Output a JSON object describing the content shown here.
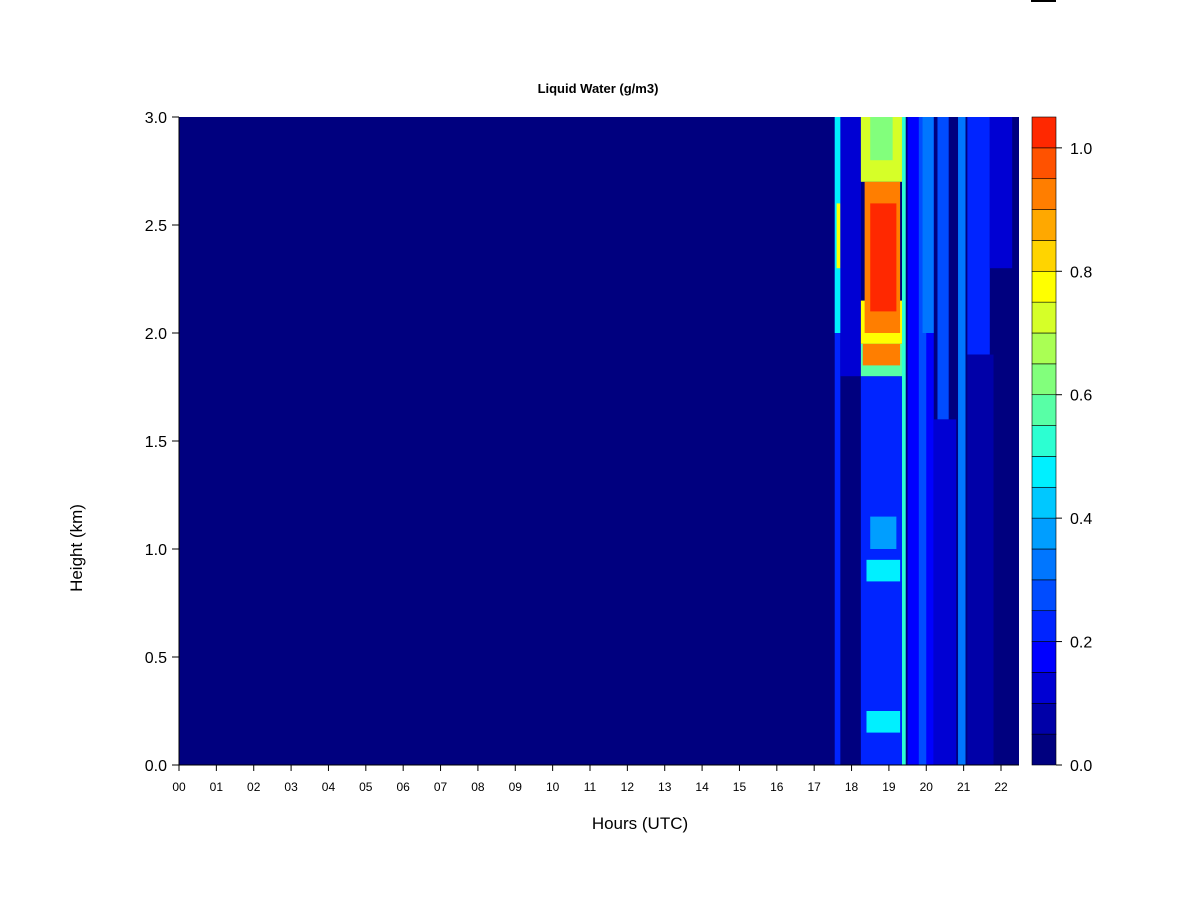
{
  "chart_data": {
    "type": "heatmap",
    "title": "Liquid Water (g/m3)",
    "xlabel": "Hours (UTC)",
    "ylabel": "Height (km)",
    "xlim": [
      0,
      22.5
    ],
    "ylim": [
      0,
      3.0
    ],
    "x_ticks": [
      "00",
      "01",
      "02",
      "03",
      "04",
      "05",
      "06",
      "07",
      "08",
      "09",
      "10",
      "11",
      "12",
      "13",
      "14",
      "15",
      "16",
      "17",
      "18",
      "19",
      "20",
      "21",
      "22"
    ],
    "y_ticks": [
      "0.0",
      "0.5",
      "1.0",
      "1.5",
      "2.0",
      "2.5",
      "3.0"
    ],
    "colorbar": {
      "levels": [
        0.0,
        0.05,
        0.1,
        0.15,
        0.2,
        0.25,
        0.3,
        0.35,
        0.4,
        0.45,
        0.5,
        0.55,
        0.6,
        0.65,
        0.7,
        0.75,
        0.8,
        0.85,
        0.9,
        0.95,
        1.0,
        1.05
      ],
      "colors": [
        "#00007f",
        "#0000a8",
        "#0000d3",
        "#0000ff",
        "#0024ff",
        "#004cff",
        "#0076ff",
        "#009eff",
        "#00c8ff",
        "#00f0ff",
        "#2cffd2",
        "#58ffa6",
        "#82ff7c",
        "#aaff54",
        "#d6ff28",
        "#ffff00",
        "#ffd400",
        "#ffa800",
        "#ff7e00",
        "#ff5200",
        "#ff2800",
        "#d40000",
        "#aa0000",
        "#7f0000"
      ],
      "tick_labels": [
        "0.0",
        "0.2",
        "0.4",
        "0.6",
        "0.8",
        "1.0"
      ],
      "tick_values": [
        0.0,
        0.2,
        0.4,
        0.6,
        0.8,
        1.0
      ]
    },
    "background_value": 0.0,
    "features": [
      {
        "x": [
          17.55,
          17.7
        ],
        "y": [
          0.0,
          3.0
        ],
        "value": 0.22
      },
      {
        "x": [
          17.55,
          17.75
        ],
        "y": [
          2.0,
          3.0
        ],
        "value": 0.45
      },
      {
        "x": [
          17.6,
          17.7
        ],
        "y": [
          2.3,
          2.6
        ],
        "value": 0.75
      },
      {
        "x": [
          17.7,
          18.25
        ],
        "y": [
          1.8,
          3.0
        ],
        "value": 0.12
      },
      {
        "x": [
          18.25,
          19.35
        ],
        "y": [
          0.0,
          1.8
        ],
        "value": 0.2
      },
      {
        "x": [
          18.4,
          19.3
        ],
        "y": [
          0.85,
          0.95
        ],
        "value": 0.45
      },
      {
        "x": [
          18.4,
          19.3
        ],
        "y": [
          0.15,
          0.25
        ],
        "value": 0.45
      },
      {
        "x": [
          18.5,
          19.2
        ],
        "y": [
          1.0,
          1.15
        ],
        "value": 0.35
      },
      {
        "x": [
          18.25,
          19.35
        ],
        "y": [
          1.8,
          1.95
        ],
        "value": 0.55
      },
      {
        "x": [
          18.3,
          19.3
        ],
        "y": [
          1.85,
          1.95
        ],
        "value": 0.9
      },
      {
        "x": [
          18.25,
          19.35
        ],
        "y": [
          1.95,
          2.15
        ],
        "value": 0.75
      },
      {
        "x": [
          18.35,
          19.3
        ],
        "y": [
          2.0,
          2.7
        ],
        "value": 0.92
      },
      {
        "x": [
          18.5,
          19.2
        ],
        "y": [
          2.1,
          2.6
        ],
        "value": 1.0
      },
      {
        "x": [
          18.25,
          19.35
        ],
        "y": [
          2.7,
          3.0
        ],
        "value": 0.7
      },
      {
        "x": [
          18.5,
          19.1
        ],
        "y": [
          2.8,
          3.0
        ],
        "value": 0.6
      },
      {
        "x": [
          19.35,
          19.45
        ],
        "y": [
          0.0,
          3.0
        ],
        "value": 0.5
      },
      {
        "x": [
          19.5,
          20.2
        ],
        "y": [
          0.0,
          3.0
        ],
        "value": 0.15
      },
      {
        "x": [
          19.8,
          20.0
        ],
        "y": [
          0.0,
          3.0
        ],
        "value": 0.25
      },
      {
        "x": [
          19.9,
          20.2
        ],
        "y": [
          2.0,
          3.0
        ],
        "value": 0.32
      },
      {
        "x": [
          20.3,
          20.6
        ],
        "y": [
          1.6,
          3.0
        ],
        "value": 0.25
      },
      {
        "x": [
          20.2,
          20.8
        ],
        "y": [
          0.0,
          1.6
        ],
        "value": 0.12
      },
      {
        "x": [
          20.85,
          21.05
        ],
        "y": [
          0.0,
          3.0
        ],
        "value": 0.3
      },
      {
        "x": [
          21.1,
          21.7
        ],
        "y": [
          1.9,
          3.0
        ],
        "value": 0.2
      },
      {
        "x": [
          21.7,
          22.3
        ],
        "y": [
          2.3,
          3.0
        ],
        "value": 0.12
      },
      {
        "x": [
          21.1,
          21.8
        ],
        "y": [
          0.0,
          1.9
        ],
        "value": 0.06
      }
    ]
  }
}
